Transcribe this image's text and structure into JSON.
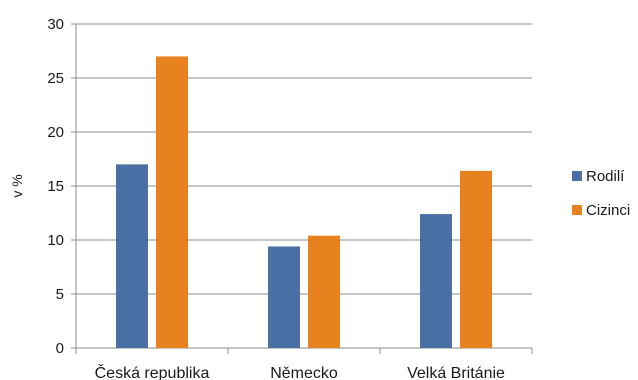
{
  "chart_data": {
    "type": "bar",
    "title": "",
    "xlabel": "",
    "ylabel": "v %",
    "ylim": [
      0,
      30
    ],
    "yticks": [
      0,
      5,
      10,
      15,
      20,
      25,
      30
    ],
    "grid": true,
    "legend_position": "right",
    "categories": [
      "Česká republika",
      "Německo",
      "Velká Británie"
    ],
    "series": [
      {
        "name": "Rodilí",
        "color": "#4a6fa5",
        "values": [
          17.0,
          9.4,
          12.4
        ]
      },
      {
        "name": "Cizinci",
        "color": "#e8821e",
        "values": [
          27.0,
          10.4,
          16.4
        ]
      }
    ]
  }
}
